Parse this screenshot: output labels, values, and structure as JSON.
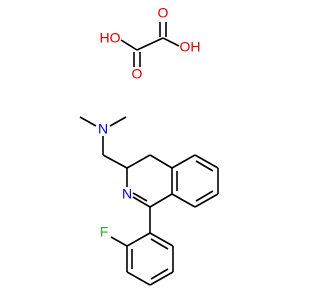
{
  "atoms": {
    "ho": "HO",
    "o_low": "O",
    "o_high": "O",
    "oh": "OH",
    "n_amine": "N",
    "n_ring": "N",
    "f": "F"
  }
}
